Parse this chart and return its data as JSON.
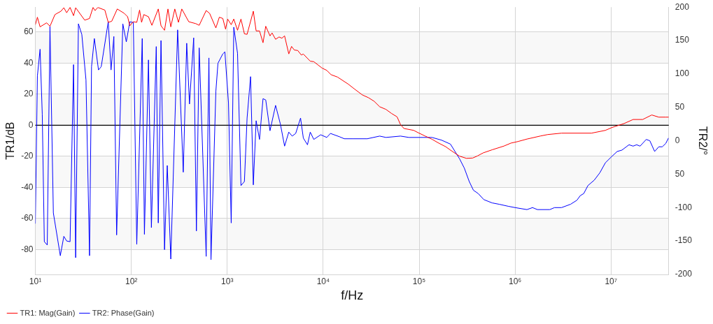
{
  "chart_data": {
    "type": "line",
    "xlabel": "f/Hz",
    "ylabel": "TR1/dB",
    "y2label": "TR2/°",
    "xlim": [
      10,
      40000000
    ],
    "xticks": [
      {
        "value": 10,
        "label": "10¹"
      },
      {
        "value": 100,
        "label": "10²"
      },
      {
        "value": 1000,
        "label": "10³"
      },
      {
        "value": 10000,
        "label": "10⁴"
      },
      {
        "value": 100000,
        "label": "10⁵"
      },
      {
        "value": 1000000,
        "label": "10⁶"
      },
      {
        "value": 10000000,
        "label": "10⁷"
      }
    ],
    "ylim": [
      -96,
      76
    ],
    "yticks": [
      -80,
      -60,
      -40,
      -20,
      0,
      20,
      40,
      60
    ],
    "y2lim": [
      -200,
      200
    ],
    "y2ticks": [
      -200,
      -150,
      -100,
      {
        "value": -50,
        "label": "50"
      },
      0,
      50,
      100,
      150,
      200
    ],
    "log": "x",
    "grid": true,
    "legend": "bottom left",
    "marker": "none",
    "line_style": "solid",
    "ref_lines": [
      {
        "axis": "y",
        "value": 0,
        "color": "#000000"
      }
    ],
    "series": [
      {
        "name": "TR1: Mag(Gain)",
        "color": "#ff0000",
        "x": [
          10,
          10.5,
          11.2,
          13.1,
          14.2,
          16,
          18.5,
          19.8,
          21.2,
          23,
          25,
          26.3,
          32.7,
          36.7,
          39.9,
          41.9,
          44.8,
          53,
          57.5,
          62.5,
          71.4,
          84.4,
          91.6,
          96.4,
          105,
          114,
          122,
          128,
          135,
          151,
          164,
          191,
          204,
          222,
          241,
          258,
          284,
          310,
          336,
          397,
          469,
          510,
          603,
          655,
          761,
          827,
          899,
          961,
          1010,
          1100,
          1170,
          1280,
          1390,
          1510,
          1610,
          1870,
          2000,
          2170,
          2360,
          2520,
          2790,
          2930,
          3190,
          3470,
          3710,
          3960,
          4380,
          4680,
          5000,
          5430,
          5910,
          6210,
          7330,
          7980,
          9730,
          10900,
          12100,
          14100,
          18300,
          21300,
          25600,
          29700,
          34000,
          38800,
          45100,
          51500,
          58900,
          64000,
          69500,
          87900,
          97000,
          115000,
          136000,
          160000,
          189000,
          220000,
          264000,
          311000,
          362000,
          407000,
          465000,
          577000,
          766000,
          905000,
          1070000,
          1330000,
          1850000,
          2190000,
          3050000,
          6250000,
          8730000,
          10300000,
          13700000,
          17000000,
          21400000,
          26600000,
          31500000,
          37200000,
          40000000
        ],
        "values": [
          64.7,
          69.5,
          63.3,
          65.9,
          63.7,
          71.2,
          73.4,
          75.6,
          72.4,
          75.8,
          70.5,
          75.6,
          67.6,
          68.7,
          75.8,
          73.8,
          75.8,
          74.1,
          66.2,
          66.9,
          74.8,
          72,
          69.8,
          64,
          66.6,
          66.2,
          74.1,
          66.2,
          71.2,
          69.8,
          64.3,
          74.8,
          64,
          61.1,
          74.8,
          63.3,
          74.8,
          66.2,
          74.8,
          66.6,
          65.4,
          64.3,
          73.8,
          72,
          62.6,
          69.5,
          68.7,
          61.8,
          68.3,
          64.7,
          68.3,
          61.1,
          68.3,
          58.8,
          58.5,
          73.4,
          60.7,
          60.7,
          53.1,
          63.7,
          57.5,
          59.4,
          55.3,
          56.8,
          56,
          57.5,
          45.9,
          50.7,
          48.4,
          48.1,
          45.2,
          45.8,
          41.2,
          40.9,
          36.8,
          35.3,
          32.5,
          31,
          26.4,
          23.2,
          19.5,
          17.7,
          15.4,
          11.9,
          10.2,
          7.6,
          5.4,
          0.4,
          -2.1,
          -3.3,
          -4.7,
          -6.9,
          -9,
          -11.5,
          -13.8,
          -16.7,
          -19.9,
          -21.3,
          -21.1,
          -19.7,
          -17.8,
          -15.8,
          -13.4,
          -11.5,
          -10.5,
          -8.9,
          -6.9,
          -6,
          -5.1,
          -5.1,
          -3.3,
          -1.4,
          1.1,
          3.7,
          3.7,
          6.6,
          5.2,
          5.2,
          5.2
        ]
      },
      {
        "name": "TR2: Phase(Gain)",
        "color": "#0000ff",
        "axis": "y2",
        "x": [
          10,
          10.5,
          11.2,
          11.8,
          12.4,
          13.3,
          14.2,
          15.4,
          18.2,
          19.8,
          21.2,
          23,
          25,
          26.3,
          28.1,
          30.5,
          33.7,
          36.7,
          38.5,
          41.2,
          45.5,
          48.6,
          57.5,
          61.5,
          65.8,
          70.3,
          81.6,
          88.7,
          96.4,
          105,
          114,
          130,
          137,
          151,
          162,
          182,
          191,
          204,
          222,
          237,
          258,
          304,
          348,
          378,
          404,
          447,
          477,
          510,
          603,
          644,
          677,
          761,
          800,
          899,
          945,
          1030,
          1100,
          1170,
          1280,
          1390,
          1510,
          1610,
          1750,
          1870,
          2000,
          2170,
          2360,
          2520,
          2790,
          3190,
          3580,
          3960,
          4380,
          4750,
          5170,
          5810,
          6210,
          6860,
          7330,
          7980,
          9420,
          10900,
          11900,
          14800,
          16600,
          20600,
          28800,
          38800,
          45100,
          64000,
          78200,
          136000,
          171000,
          212000,
          264000,
          296000,
          333000,
          368000,
          413000,
          472000,
          577000,
          682000,
          847000,
          1000000,
          1330000,
          1520000,
          1710000,
          2300000,
          2580000,
          3050000,
          3790000,
          4410000,
          4790000,
          5200000,
          5750000,
          6680000,
          7640000,
          8730000,
          10100000,
          11600000,
          13000000,
          15400000,
          17000000,
          18500000,
          20100000,
          23300000,
          25400000,
          28500000,
          31500000,
          34200000,
          37200000,
          39700000
        ],
        "values": [
          -124,
          97,
          137,
          40,
          -151,
          -156,
          171,
          -108,
          -172,
          -143,
          -150,
          -151,
          114,
          -175,
          175,
          159,
          91,
          -172,
          111,
          153,
          106,
          111,
          178,
          106,
          156,
          -141,
          175,
          148,
          178,
          177,
          -155,
          153,
          -140,
          121,
          -130,
          141,
          -123,
          150,
          -163,
          -37,
          -177,
          166,
          -47,
          146,
          55,
          154,
          -135,
          139,
          -173,
          124,
          -178,
          74,
          116,
          130,
          133,
          57,
          -123,
          170,
          131,
          -67,
          -61,
          34,
          96,
          -66,
          30,
          2,
          63,
          61,
          15,
          53,
          25,
          -8,
          13,
          7,
          11,
          34,
          4,
          -6,
          13,
          2,
          9,
          5,
          11,
          6,
          3,
          3,
          3,
          7,
          5,
          7,
          5,
          5,
          1,
          -5,
          -27,
          -41,
          -61,
          -74,
          -79,
          -88,
          -93,
          -95,
          -98,
          -100,
          -103,
          -100,
          -103,
          -103,
          -100,
          -100,
          -95,
          -89,
          -82,
          -79,
          -67,
          -59,
          -48,
          -33,
          -24,
          -16,
          -14,
          -6,
          -8,
          -6,
          -8,
          2,
          0,
          -16,
          -9,
          -9,
          -4,
          4
        ]
      }
    ]
  }
}
